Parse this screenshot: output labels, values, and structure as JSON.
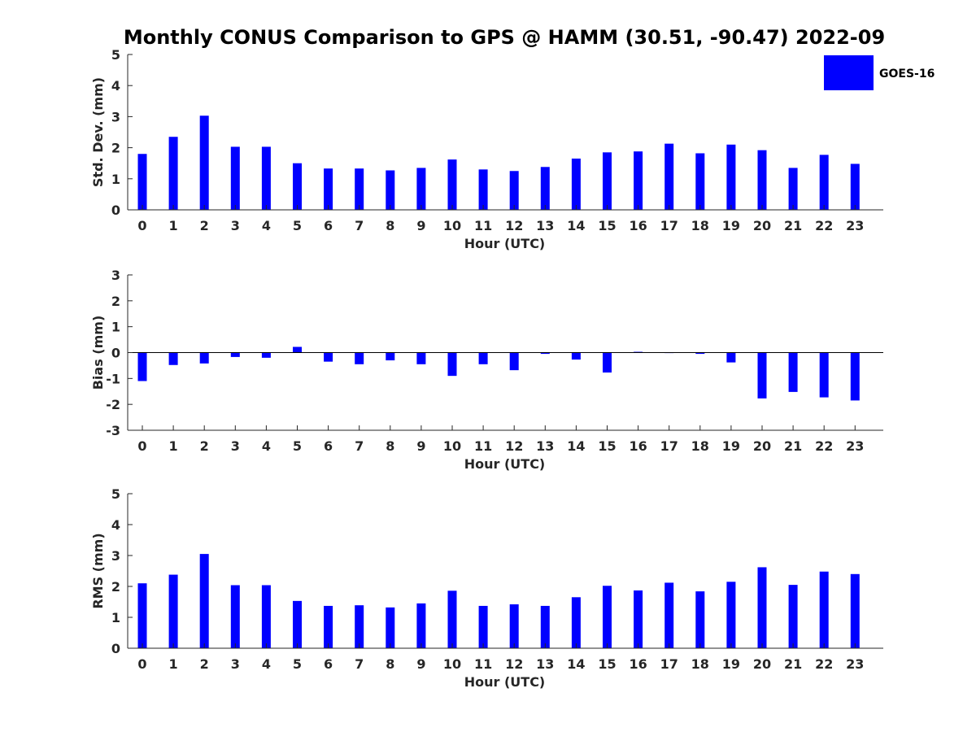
{
  "title": "Monthly CONUS Comparison to GPS @ HAMM (30.51, -90.47) 2022-09",
  "legend": {
    "label": "GOES-16",
    "color": "#0000ff"
  },
  "chart_data": [
    {
      "type": "bar",
      "xlabel": "Hour (UTC)",
      "ylabel": "Std. Dev. (mm)",
      "ylim": [
        0,
        5
      ],
      "yticks": [
        0,
        1,
        2,
        3,
        4,
        5
      ],
      "categories": [
        "0",
        "1",
        "2",
        "3",
        "4",
        "5",
        "6",
        "7",
        "8",
        "9",
        "10",
        "11",
        "12",
        "13",
        "14",
        "15",
        "16",
        "17",
        "18",
        "19",
        "20",
        "21",
        "22",
        "23"
      ],
      "series": [
        {
          "name": "GOES-16",
          "color": "#0000ff",
          "values": [
            1.8,
            2.35,
            3.03,
            2.03,
            2.03,
            1.5,
            1.33,
            1.33,
            1.27,
            1.35,
            1.62,
            1.3,
            1.25,
            1.38,
            1.65,
            1.85,
            1.88,
            2.13,
            1.82,
            2.1,
            1.92,
            1.35,
            1.77,
            1.48
          ]
        }
      ]
    },
    {
      "type": "bar",
      "xlabel": "Hour (UTC)",
      "ylabel": "Bias (mm)",
      "ylim": [
        -3,
        3
      ],
      "yticks": [
        -3,
        -2,
        -1,
        0,
        1,
        2,
        3
      ],
      "categories": [
        "0",
        "1",
        "2",
        "3",
        "4",
        "5",
        "6",
        "7",
        "8",
        "9",
        "10",
        "11",
        "12",
        "13",
        "14",
        "15",
        "16",
        "17",
        "18",
        "19",
        "20",
        "21",
        "22",
        "23"
      ],
      "series": [
        {
          "name": "GOES-16",
          "color": "#0000ff",
          "values": [
            -1.1,
            -0.48,
            -0.42,
            -0.17,
            -0.2,
            0.22,
            -0.35,
            -0.45,
            -0.3,
            -0.45,
            -0.9,
            -0.45,
            -0.68,
            -0.05,
            -0.27,
            -0.77,
            0.03,
            0.0,
            -0.05,
            -0.38,
            -1.77,
            -1.52,
            -1.73,
            -1.85
          ]
        }
      ]
    },
    {
      "type": "bar",
      "xlabel": "Hour (UTC)",
      "ylabel": "RMS (mm)",
      "ylim": [
        0,
        5
      ],
      "yticks": [
        0,
        1,
        2,
        3,
        4,
        5
      ],
      "categories": [
        "0",
        "1",
        "2",
        "3",
        "4",
        "5",
        "6",
        "7",
        "8",
        "9",
        "10",
        "11",
        "12",
        "13",
        "14",
        "15",
        "16",
        "17",
        "18",
        "19",
        "20",
        "21",
        "22",
        "23"
      ],
      "series": [
        {
          "name": "GOES-16",
          "color": "#0000ff",
          "values": [
            2.1,
            2.38,
            3.05,
            2.04,
            2.04,
            1.53,
            1.37,
            1.39,
            1.32,
            1.45,
            1.86,
            1.37,
            1.42,
            1.37,
            1.65,
            2.02,
            1.87,
            2.12,
            1.84,
            2.15,
            2.62,
            2.05,
            2.48,
            2.4
          ]
        }
      ]
    }
  ]
}
